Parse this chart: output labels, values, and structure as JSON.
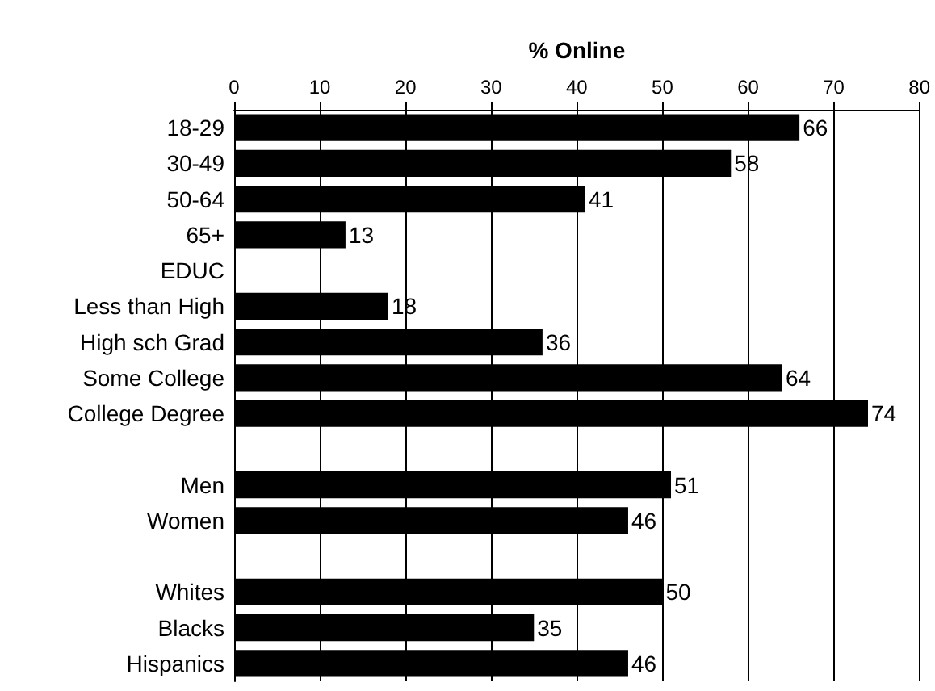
{
  "chart_data": {
    "type": "bar",
    "orientation": "horizontal",
    "xlabel": "% Online",
    "categories": [
      "18-29",
      "30-49",
      "50-64",
      "65+",
      "EDUC",
      "Less than High",
      "High sch Grad",
      "Some College",
      "College Degree",
      null,
      "Men",
      "Women",
      null,
      "Whites",
      "Blacks",
      "Hispanics"
    ],
    "values": [
      66,
      58,
      41,
      13,
      null,
      18,
      36,
      64,
      74,
      null,
      51,
      46,
      null,
      50,
      35,
      46
    ],
    "color": "#000000",
    "xlim": [
      0,
      80
    ],
    "xticks": [
      0,
      10,
      20,
      30,
      40,
      50,
      60,
      70,
      80
    ],
    "grid": "x",
    "data_labels": true
  }
}
